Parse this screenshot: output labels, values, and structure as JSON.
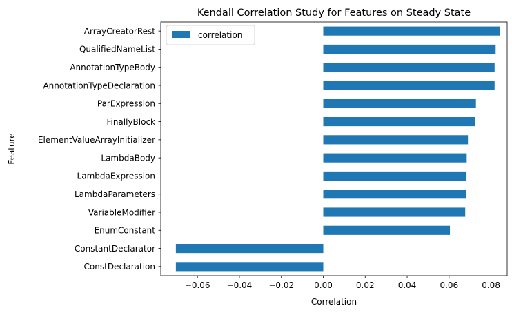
{
  "chart_data": {
    "type": "bar",
    "orientation": "horizontal",
    "title": "Kendall Correlation Study for Features on Steady State",
    "xlabel": "Correlation",
    "ylabel": "Feature",
    "categories": [
      "ArrayCreatorRest",
      "QualifiedNameList",
      "AnnotationTypeBody",
      "AnnotationTypeDeclaration",
      "ParExpression",
      "FinallyBlock",
      "ElementValueArrayInitializer",
      "LambdaBody",
      "LambdaExpression",
      "LambdaParameters",
      "VariableModifier",
      "EnumConstant",
      "ConstantDeclarator",
      "ConstDeclaration"
    ],
    "series": [
      {
        "name": "correlation",
        "color": "#1f77b4",
        "values": [
          0.0842,
          0.0822,
          0.0817,
          0.0817,
          0.0728,
          0.0723,
          0.069,
          0.0684,
          0.0683,
          0.0683,
          0.0677,
          0.0604,
          -0.0703,
          -0.0703
        ]
      }
    ],
    "xlim": [
      -0.0775,
      0.0877
    ],
    "xticks": [
      -0.06,
      -0.04,
      -0.02,
      0.0,
      0.02,
      0.04,
      0.06,
      0.08
    ],
    "xtick_labels": [
      "−0.06",
      "−0.04",
      "−0.02",
      "0.00",
      "0.02",
      "0.04",
      "0.06",
      "0.08"
    ],
    "grid": false,
    "legend_position": "top-left"
  }
}
